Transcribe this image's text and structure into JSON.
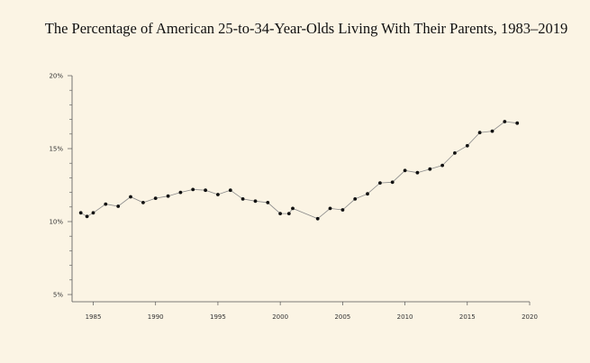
{
  "chart_data": {
    "type": "line",
    "title": "The Percentage of American 25-to-34-Year-Olds Living With Their Parents, 1983–2019",
    "xlabel": "",
    "ylabel": "",
    "xlim": [
      1983,
      2020
    ],
    "ylim": [
      4.5,
      20
    ],
    "x_ticks": [
      1985,
      1990,
      1995,
      2000,
      2005,
      2010,
      2015,
      2020
    ],
    "x_tick_labels": [
      "1985",
      "1990",
      "1995",
      "2000",
      "2005",
      "2010",
      "2015",
      "2020"
    ],
    "y_ticks": [
      5,
      10,
      15,
      20
    ],
    "y_tick_labels": [
      "5%",
      "10%",
      "15%",
      "20%"
    ],
    "y_minor_step": 1,
    "grid": false,
    "legend": "none",
    "series": [
      {
        "x": [
          1984,
          1984.5,
          1985,
          1986,
          1987,
          1988,
          1989,
          1990,
          1991,
          1992,
          1993,
          1994,
          1995,
          1996,
          1997,
          1998,
          1999,
          2000,
          2000.7,
          2001,
          2003,
          2004,
          2005,
          2006,
          2007,
          2008,
          2009,
          2010,
          2011,
          2012,
          2013,
          2014,
          2015,
          2016,
          2017,
          2018,
          2019
        ],
        "values": [
          10.6,
          10.35,
          10.6,
          11.2,
          11.05,
          11.7,
          11.3,
          11.6,
          11.75,
          12.0,
          12.2,
          12.15,
          11.85,
          12.15,
          11.55,
          11.4,
          11.3,
          10.55,
          10.55,
          10.9,
          10.2,
          10.9,
          10.8,
          11.55,
          11.9,
          12.65,
          12.7,
          13.5,
          13.35,
          13.6,
          13.85,
          14.7,
          15.2,
          16.1,
          16.2,
          16.85,
          16.75
        ]
      }
    ],
    "colors": {
      "line": "#8a8a8a",
      "marker": "#111111",
      "axis": "#555555",
      "background": "#fbf4e4"
    }
  }
}
